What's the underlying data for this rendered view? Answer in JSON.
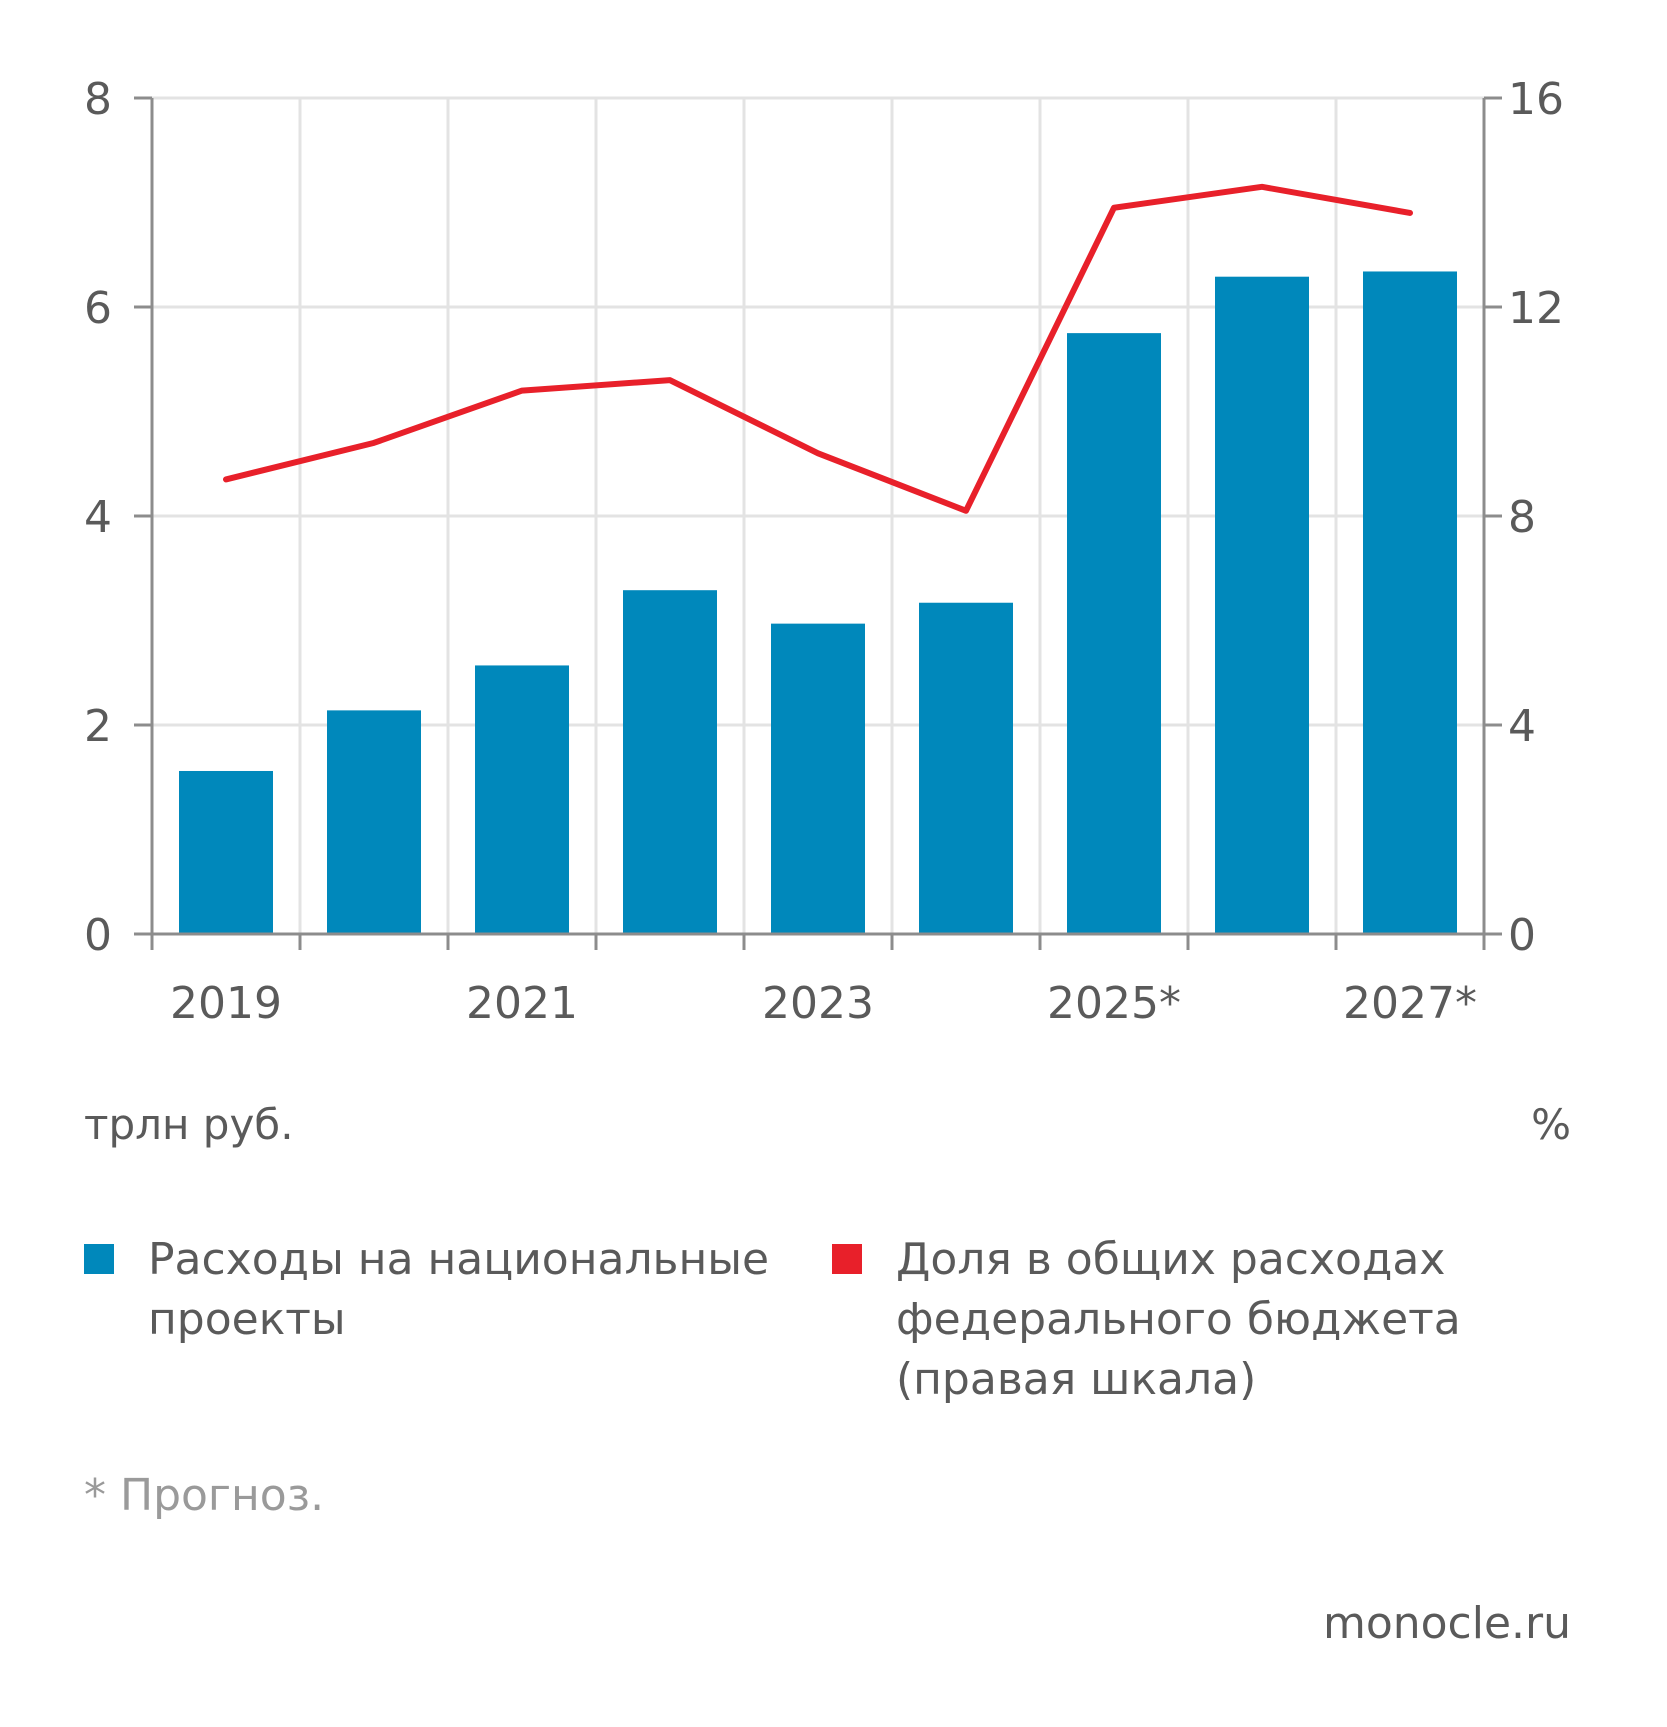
{
  "chart_data": {
    "type": "bar+line",
    "categories": [
      "2019",
      "2020",
      "2021",
      "2022",
      "2023",
      "2024",
      "2025*",
      "2026*",
      "2027*"
    ],
    "x_tick_labels": [
      "2019",
      "2021",
      "2023",
      "2025*",
      "2027*"
    ],
    "series": [
      {
        "name": "Расходы на национальные проекты",
        "type": "bar",
        "axis": "left",
        "color": "#0088BB",
        "values": [
          1.56,
          2.14,
          2.57,
          3.29,
          2.97,
          3.17,
          5.75,
          6.29,
          6.34
        ]
      },
      {
        "name": "Доля в общих расходах федерального бюджета (правая шкала)",
        "type": "line",
        "axis": "right",
        "color": "#E8202A",
        "values": [
          8.7,
          9.4,
          10.4,
          10.6,
          9.2,
          8.1,
          13.9,
          14.3,
          13.8
        ]
      }
    ],
    "y_left": {
      "label": "трлн руб.",
      "ylim": [
        0,
        8
      ],
      "ticks": [
        "0",
        "2",
        "4",
        "6",
        "8"
      ]
    },
    "y_right": {
      "label": "%",
      "ylim": [
        0,
        16
      ],
      "ticks": [
        "0",
        "4",
        "8",
        "12",
        "16"
      ]
    },
    "grid": true,
    "legend_position": "bottom"
  },
  "labels": {
    "unit_left": "трлн руб.",
    "unit_right": "%",
    "legend_bars": "Расходы на национальные проекты",
    "legend_line": "Доля в общих расходах федерального бюджета (правая шкала)",
    "footnote": "* Прогноз.",
    "source": "monocle.ru"
  }
}
